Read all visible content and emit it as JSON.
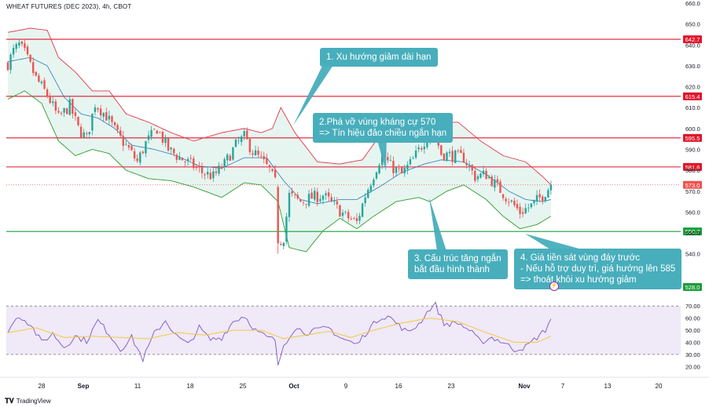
{
  "header": {
    "title": "WHEAT FUTURES (DEC 2023), 4h, CBOT"
  },
  "footer": {
    "brand": "TradingView",
    "logo": "tradingview-logo"
  },
  "colors": {
    "bullish": "#26a69a",
    "bearish": "#ef5350",
    "resistance": "#e0162b",
    "support": "#1b9e3a",
    "bb_upper": "#e23645",
    "bb_lower": "#2c9d2c",
    "bb_basis": "#2a7ab8",
    "bb_fill": "#e3f3ef",
    "rsi_line": "#7e57c2",
    "rsi_ma": "#f5c842",
    "rsi_band": "#efe9f8",
    "callout": "#48aebc"
  },
  "annotations": [
    {
      "id": "callout-1",
      "lines": [
        "1. Xu hướng giảm dài hạn"
      ]
    },
    {
      "id": "callout-2",
      "lines": [
        "2.Phá vỡ vùng kháng cự 570",
        "=> Tín hiệu đảo chiều ngắn hạn"
      ]
    },
    {
      "id": "callout-3",
      "lines": [
        "3. Cấu trúc tăng ngắn",
        "bắt đầu hình thành"
      ]
    },
    {
      "id": "callout-4",
      "lines": [
        "4. Giá tiền sát vùng đáy trước",
        "- Nếu hỗ trợ duy trì, giá hướng lên 585",
        "=> thoát khỏi xu hướng giảm"
      ]
    }
  ],
  "icons": {
    "event": "lightning-icon"
  },
  "chart_data": [
    {
      "type": "candlestick",
      "title": "WHEAT FUTURES (DEC 2023), 4h, CBOT",
      "ylim": [
        532,
        660
      ],
      "y_ticks": [
        540,
        550,
        560,
        570,
        580,
        590,
        600,
        610,
        620,
        630,
        640,
        650,
        660
      ],
      "y_tick_labels": [
        "540.0",
        "550.0",
        "560.0",
        "570.0",
        "580.0",
        "590.0",
        "600.0",
        "610.0",
        "620.0",
        "630.0",
        "640.0",
        "650.0",
        "660.0"
      ],
      "x_tick_labels": [
        "28",
        "Sep",
        "11",
        "18",
        "25",
        "Oct",
        "9",
        "16",
        "23",
        "Nov",
        "7",
        "13",
        "20"
      ],
      "last_price": 573.0,
      "last_price_label": "573.0",
      "horizontal_levels": [
        {
          "value": 642.7,
          "label": "642.7",
          "kind": "resistance"
        },
        {
          "value": 615.4,
          "label": "615.4",
          "kind": "resistance"
        },
        {
          "value": 595.5,
          "label": "595.5",
          "kind": "resistance"
        },
        {
          "value": 581.6,
          "label": "581.6",
          "kind": "resistance"
        },
        {
          "value": 550.7,
          "label": "550.7",
          "kind": "support"
        },
        {
          "value": 528.0,
          "label": "528.0",
          "kind": "marker"
        }
      ],
      "close_path": [
        {
          "i": 0,
          "v": 631
        },
        {
          "i": 2,
          "v": 637
        },
        {
          "i": 4,
          "v": 640
        },
        {
          "i": 6,
          "v": 636
        },
        {
          "i": 10,
          "v": 624
        },
        {
          "i": 14,
          "v": 616
        },
        {
          "i": 18,
          "v": 605
        },
        {
          "i": 22,
          "v": 611
        },
        {
          "i": 25,
          "v": 600
        },
        {
          "i": 28,
          "v": 595
        },
        {
          "i": 31,
          "v": 612
        },
        {
          "i": 35,
          "v": 606
        },
        {
          "i": 39,
          "v": 597
        },
        {
          "i": 43,
          "v": 590
        },
        {
          "i": 46,
          "v": 584
        },
        {
          "i": 49,
          "v": 593
        },
        {
          "i": 53,
          "v": 600
        },
        {
          "i": 57,
          "v": 590
        },
        {
          "i": 61,
          "v": 586
        },
        {
          "i": 65,
          "v": 583
        },
        {
          "i": 69,
          "v": 579
        },
        {
          "i": 73,
          "v": 577
        },
        {
          "i": 77,
          "v": 583
        },
        {
          "i": 81,
          "v": 592
        },
        {
          "i": 84,
          "v": 596
        },
        {
          "i": 87,
          "v": 589
        },
        {
          "i": 90,
          "v": 585
        },
        {
          "i": 93,
          "v": 580
        },
        {
          "i": 95,
          "v": 574
        },
        {
          "i": 96,
          "v": 545
        },
        {
          "i": 98,
          "v": 548
        },
        {
          "i": 100,
          "v": 568
        },
        {
          "i": 104,
          "v": 565
        },
        {
          "i": 108,
          "v": 567
        },
        {
          "i": 112,
          "v": 568
        },
        {
          "i": 116,
          "v": 563
        },
        {
          "i": 120,
          "v": 558
        },
        {
          "i": 124,
          "v": 555
        },
        {
          "i": 127,
          "v": 568
        },
        {
          "i": 130,
          "v": 578
        },
        {
          "i": 133,
          "v": 588
        },
        {
          "i": 136,
          "v": 582
        },
        {
          "i": 140,
          "v": 578
        },
        {
          "i": 144,
          "v": 585
        },
        {
          "i": 148,
          "v": 594
        },
        {
          "i": 151,
          "v": 600
        },
        {
          "i": 154,
          "v": 588
        },
        {
          "i": 158,
          "v": 587
        },
        {
          "i": 162,
          "v": 586
        },
        {
          "i": 166,
          "v": 577
        },
        {
          "i": 170,
          "v": 578
        },
        {
          "i": 174,
          "v": 572
        },
        {
          "i": 178,
          "v": 566
        },
        {
          "i": 182,
          "v": 560
        },
        {
          "i": 186,
          "v": 563
        },
        {
          "i": 190,
          "v": 568
        },
        {
          "i": 193,
          "v": 573
        }
      ],
      "bollinger_upper": [
        {
          "i": 0,
          "v": 646
        },
        {
          "i": 8,
          "v": 648
        },
        {
          "i": 14,
          "v": 647
        },
        {
          "i": 18,
          "v": 634
        },
        {
          "i": 24,
          "v": 627
        },
        {
          "i": 30,
          "v": 618
        },
        {
          "i": 36,
          "v": 618
        },
        {
          "i": 42,
          "v": 607
        },
        {
          "i": 50,
          "v": 603
        },
        {
          "i": 58,
          "v": 598
        },
        {
          "i": 66,
          "v": 594
        },
        {
          "i": 76,
          "v": 598
        },
        {
          "i": 84,
          "v": 600
        },
        {
          "i": 90,
          "v": 598
        },
        {
          "i": 94,
          "v": 600
        },
        {
          "i": 97,
          "v": 610
        },
        {
          "i": 102,
          "v": 598
        },
        {
          "i": 110,
          "v": 584
        },
        {
          "i": 118,
          "v": 583
        },
        {
          "i": 126,
          "v": 585
        },
        {
          "i": 134,
          "v": 600
        },
        {
          "i": 140,
          "v": 597
        },
        {
          "i": 146,
          "v": 598
        },
        {
          "i": 152,
          "v": 603
        },
        {
          "i": 160,
          "v": 603
        },
        {
          "i": 168,
          "v": 594
        },
        {
          "i": 176,
          "v": 587
        },
        {
          "i": 184,
          "v": 584
        },
        {
          "i": 190,
          "v": 577
        },
        {
          "i": 193,
          "v": 573
        }
      ],
      "bollinger_lower": [
        {
          "i": 0,
          "v": 614
        },
        {
          "i": 6,
          "v": 618
        },
        {
          "i": 12,
          "v": 612
        },
        {
          "i": 18,
          "v": 594
        },
        {
          "i": 24,
          "v": 587
        },
        {
          "i": 30,
          "v": 590
        },
        {
          "i": 36,
          "v": 588
        },
        {
          "i": 42,
          "v": 580
        },
        {
          "i": 50,
          "v": 576
        },
        {
          "i": 58,
          "v": 575
        },
        {
          "i": 66,
          "v": 572
        },
        {
          "i": 76,
          "v": 567
        },
        {
          "i": 84,
          "v": 574
        },
        {
          "i": 90,
          "v": 573
        },
        {
          "i": 96,
          "v": 565
        },
        {
          "i": 100,
          "v": 543
        },
        {
          "i": 106,
          "v": 541
        },
        {
          "i": 112,
          "v": 551
        },
        {
          "i": 118,
          "v": 557
        },
        {
          "i": 124,
          "v": 552
        },
        {
          "i": 130,
          "v": 558
        },
        {
          "i": 138,
          "v": 565
        },
        {
          "i": 146,
          "v": 567
        },
        {
          "i": 150,
          "v": 565
        },
        {
          "i": 156,
          "v": 570
        },
        {
          "i": 162,
          "v": 573
        },
        {
          "i": 170,
          "v": 566
        },
        {
          "i": 176,
          "v": 558
        },
        {
          "i": 182,
          "v": 552
        },
        {
          "i": 188,
          "v": 554
        },
        {
          "i": 193,
          "v": 558
        }
      ],
      "bollinger_basis": [
        {
          "i": 0,
          "v": 632
        },
        {
          "i": 8,
          "v": 634
        },
        {
          "i": 14,
          "v": 630
        },
        {
          "i": 20,
          "v": 615
        },
        {
          "i": 26,
          "v": 607
        },
        {
          "i": 32,
          "v": 605
        },
        {
          "i": 38,
          "v": 600
        },
        {
          "i": 44,
          "v": 592
        },
        {
          "i": 52,
          "v": 590
        },
        {
          "i": 60,
          "v": 587
        },
        {
          "i": 68,
          "v": 582
        },
        {
          "i": 76,
          "v": 581
        },
        {
          "i": 84,
          "v": 586
        },
        {
          "i": 92,
          "v": 586
        },
        {
          "i": 98,
          "v": 575
        },
        {
          "i": 104,
          "v": 566
        },
        {
          "i": 110,
          "v": 564
        },
        {
          "i": 118,
          "v": 566
        },
        {
          "i": 124,
          "v": 566
        },
        {
          "i": 132,
          "v": 572
        },
        {
          "i": 140,
          "v": 579
        },
        {
          "i": 148,
          "v": 583
        },
        {
          "i": 154,
          "v": 585
        },
        {
          "i": 162,
          "v": 584
        },
        {
          "i": 170,
          "v": 578
        },
        {
          "i": 178,
          "v": 570
        },
        {
          "i": 184,
          "v": 566
        },
        {
          "i": 190,
          "v": 565
        },
        {
          "i": 193,
          "v": 566
        }
      ]
    },
    {
      "type": "line",
      "title": "RSI",
      "ylim": [
        17,
        74
      ],
      "y_ticks": [
        20,
        30,
        40,
        50,
        60,
        70
      ],
      "y_tick_labels": [
        "20.00",
        "30.00",
        "40.00",
        "50.00",
        "60.00",
        "70.00"
      ],
      "bands": [
        30,
        70
      ],
      "series": [
        {
          "role": "rsi",
          "points": [
            {
              "i": 0,
              "v": 50
            },
            {
              "i": 4,
              "v": 62
            },
            {
              "i": 8,
              "v": 55
            },
            {
              "i": 12,
              "v": 40
            },
            {
              "i": 16,
              "v": 47
            },
            {
              "i": 20,
              "v": 36
            },
            {
              "i": 24,
              "v": 45
            },
            {
              "i": 28,
              "v": 41
            },
            {
              "i": 32,
              "v": 58
            },
            {
              "i": 36,
              "v": 47
            },
            {
              "i": 40,
              "v": 34
            },
            {
              "i": 44,
              "v": 44
            },
            {
              "i": 48,
              "v": 26
            },
            {
              "i": 52,
              "v": 47
            },
            {
              "i": 56,
              "v": 58
            },
            {
              "i": 60,
              "v": 45
            },
            {
              "i": 64,
              "v": 38
            },
            {
              "i": 68,
              "v": 52
            },
            {
              "i": 72,
              "v": 42
            },
            {
              "i": 76,
              "v": 44
            },
            {
              "i": 80,
              "v": 57
            },
            {
              "i": 84,
              "v": 62
            },
            {
              "i": 88,
              "v": 50
            },
            {
              "i": 92,
              "v": 44
            },
            {
              "i": 95,
              "v": 42
            },
            {
              "i": 96,
              "v": 21
            },
            {
              "i": 98,
              "v": 38
            },
            {
              "i": 102,
              "v": 52
            },
            {
              "i": 106,
              "v": 48
            },
            {
              "i": 110,
              "v": 50
            },
            {
              "i": 114,
              "v": 52
            },
            {
              "i": 118,
              "v": 44
            },
            {
              "i": 122,
              "v": 40
            },
            {
              "i": 124,
              "v": 38
            },
            {
              "i": 128,
              "v": 50
            },
            {
              "i": 132,
              "v": 60
            },
            {
              "i": 135,
              "v": 62
            },
            {
              "i": 138,
              "v": 56
            },
            {
              "i": 142,
              "v": 48
            },
            {
              "i": 146,
              "v": 55
            },
            {
              "i": 150,
              "v": 68
            },
            {
              "i": 152,
              "v": 71
            },
            {
              "i": 155,
              "v": 55
            },
            {
              "i": 160,
              "v": 56
            },
            {
              "i": 164,
              "v": 50
            },
            {
              "i": 168,
              "v": 40
            },
            {
              "i": 172,
              "v": 44
            },
            {
              "i": 176,
              "v": 40
            },
            {
              "i": 180,
              "v": 34
            },
            {
              "i": 184,
              "v": 36
            },
            {
              "i": 188,
              "v": 44
            },
            {
              "i": 191,
              "v": 50
            },
            {
              "i": 193,
              "v": 60
            }
          ]
        },
        {
          "role": "rsi_ma",
          "points": [
            {
              "i": 0,
              "v": 48
            },
            {
              "i": 10,
              "v": 52
            },
            {
              "i": 20,
              "v": 44
            },
            {
              "i": 30,
              "v": 45
            },
            {
              "i": 40,
              "v": 44
            },
            {
              "i": 50,
              "v": 43
            },
            {
              "i": 60,
              "v": 48
            },
            {
              "i": 70,
              "v": 46
            },
            {
              "i": 80,
              "v": 50
            },
            {
              "i": 90,
              "v": 50
            },
            {
              "i": 98,
              "v": 43
            },
            {
              "i": 106,
              "v": 46
            },
            {
              "i": 114,
              "v": 49
            },
            {
              "i": 122,
              "v": 44
            },
            {
              "i": 130,
              "v": 50
            },
            {
              "i": 140,
              "v": 56
            },
            {
              "i": 150,
              "v": 60
            },
            {
              "i": 160,
              "v": 57
            },
            {
              "i": 170,
              "v": 48
            },
            {
              "i": 180,
              "v": 40
            },
            {
              "i": 188,
              "v": 40
            },
            {
              "i": 193,
              "v": 45
            }
          ]
        }
      ]
    }
  ]
}
